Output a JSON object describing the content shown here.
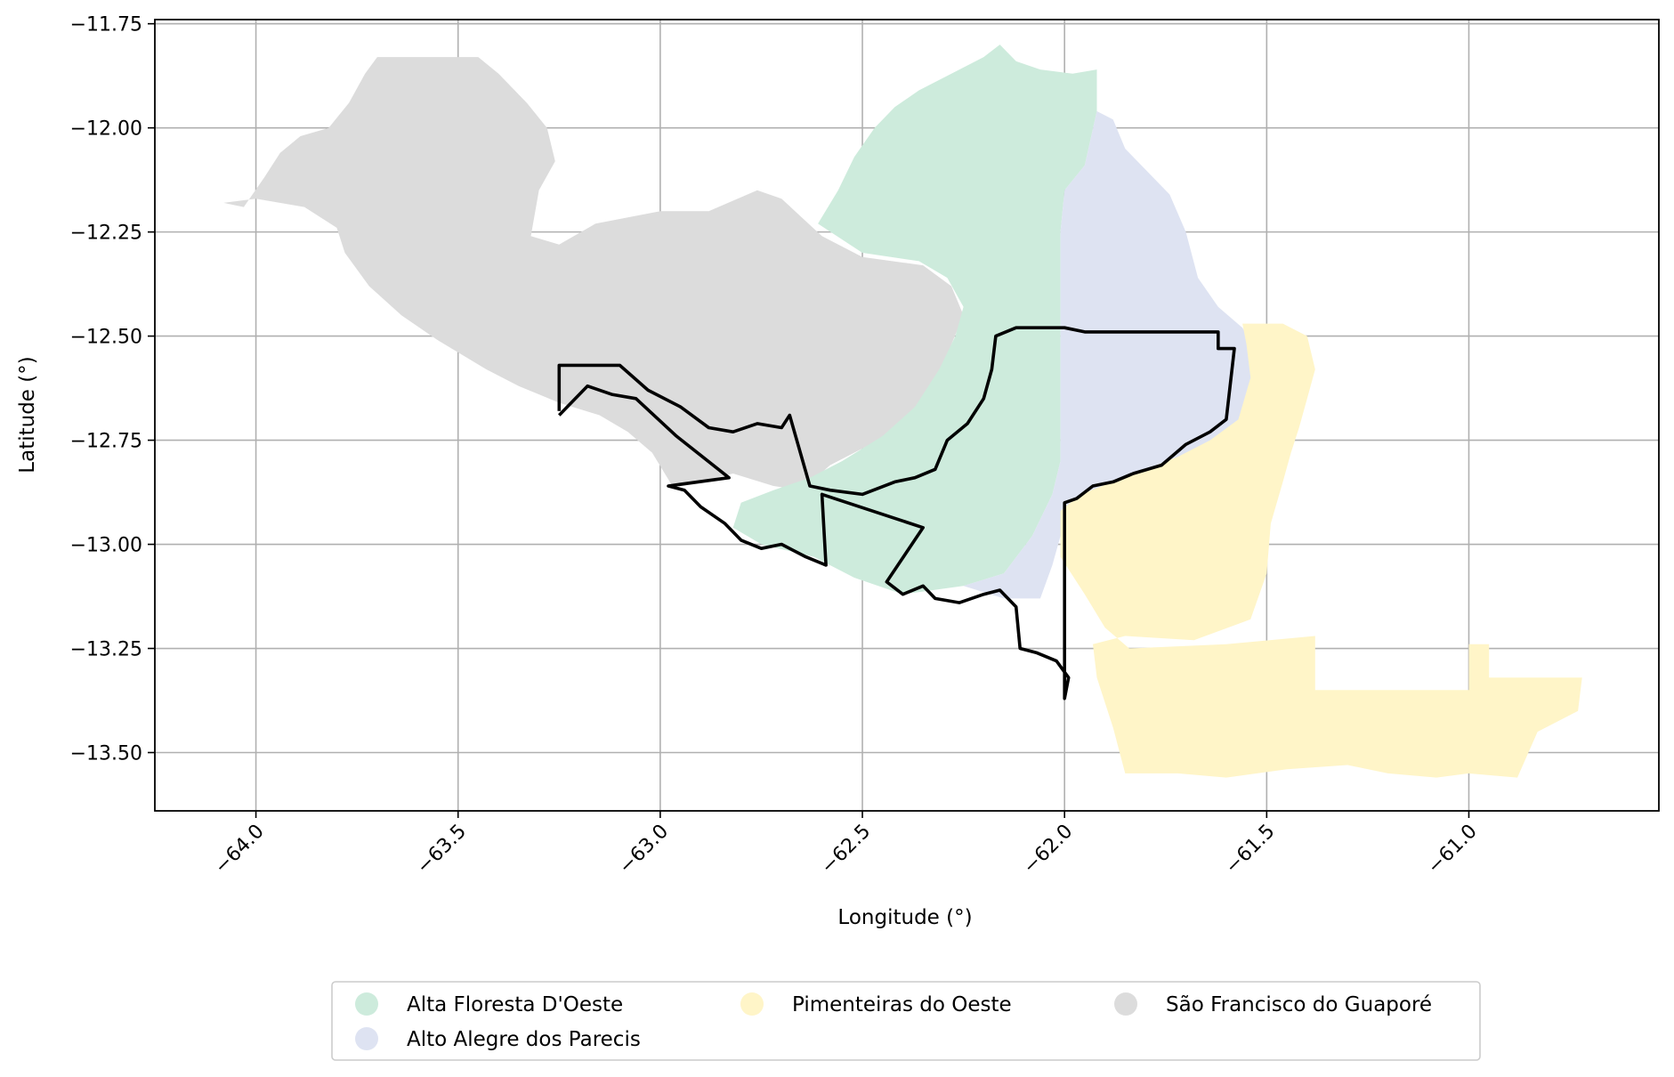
{
  "chart_data": {
    "type": "map",
    "xlabel": "Longitude (°)",
    "ylabel": "Latitude (°)",
    "xlim": [
      -64.25,
      -60.53
    ],
    "ylim": [
      -13.64,
      -11.74
    ],
    "grid": true,
    "x_ticks": [
      -64.0,
      -63.5,
      -63.0,
      -62.5,
      -62.0,
      -61.5,
      -61.0
    ],
    "y_ticks": [
      -11.75,
      -12.0,
      -12.25,
      -12.5,
      -12.75,
      -13.0,
      -13.25,
      -13.5
    ],
    "x_tick_labels": [
      "−64.0",
      "−63.5",
      "−63.0",
      "−62.5",
      "−62.0",
      "−61.5",
      "−61.0"
    ],
    "y_tick_labels": [
      "−11.75",
      "−12.00",
      "−12.25",
      "−12.50",
      "−12.75",
      "−13.00",
      "−13.25",
      "−13.50"
    ],
    "legend_position": "bottom-center",
    "regions": [
      {
        "name": "São Francisco do Guaporé",
        "color": "#dcdcdc",
        "polygon": [
          [
            -64.08,
            -12.18
          ],
          [
            -64.03,
            -12.19
          ],
          [
            -63.98,
            -12.12
          ],
          [
            -63.94,
            -12.06
          ],
          [
            -63.89,
            -12.02
          ],
          [
            -63.82,
            -12.0
          ],
          [
            -63.77,
            -11.94
          ],
          [
            -63.73,
            -11.87
          ],
          [
            -63.7,
            -11.83
          ],
          [
            -63.45,
            -11.83
          ],
          [
            -63.4,
            -11.87
          ],
          [
            -63.33,
            -11.94
          ],
          [
            -63.28,
            -12.0
          ],
          [
            -63.26,
            -12.08
          ],
          [
            -63.3,
            -12.15
          ],
          [
            -63.32,
            -12.26
          ],
          [
            -63.25,
            -12.28
          ],
          [
            -63.16,
            -12.23
          ],
          [
            -63.0,
            -12.2
          ],
          [
            -62.88,
            -12.2
          ],
          [
            -62.76,
            -12.15
          ],
          [
            -62.7,
            -12.17
          ],
          [
            -62.6,
            -12.26
          ],
          [
            -62.5,
            -12.31
          ],
          [
            -62.35,
            -12.33
          ],
          [
            -62.28,
            -12.38
          ],
          [
            -62.25,
            -12.45
          ],
          [
            -62.28,
            -12.52
          ],
          [
            -62.3,
            -12.6
          ],
          [
            -62.35,
            -12.68
          ],
          [
            -62.42,
            -12.73
          ],
          [
            -62.5,
            -12.77
          ],
          [
            -62.58,
            -12.81
          ],
          [
            -62.65,
            -12.87
          ],
          [
            -62.72,
            -12.86
          ],
          [
            -62.82,
            -12.83
          ],
          [
            -62.9,
            -12.85
          ],
          [
            -62.97,
            -12.86
          ],
          [
            -63.02,
            -12.78
          ],
          [
            -63.08,
            -12.73
          ],
          [
            -63.15,
            -12.69
          ],
          [
            -63.25,
            -12.66
          ],
          [
            -63.35,
            -12.62
          ],
          [
            -63.43,
            -12.58
          ],
          [
            -63.55,
            -12.51
          ],
          [
            -63.64,
            -12.45
          ],
          [
            -63.72,
            -12.38
          ],
          [
            -63.78,
            -12.3
          ],
          [
            -63.8,
            -12.24
          ],
          [
            -63.88,
            -12.19
          ],
          [
            -64.0,
            -12.17
          ]
        ]
      },
      {
        "name": "Alta Floresta D'Oeste",
        "color": "#cdebdc",
        "polygon": [
          [
            -62.61,
            -12.23
          ],
          [
            -62.56,
            -12.15
          ],
          [
            -62.52,
            -12.07
          ],
          [
            -62.47,
            -12.0
          ],
          [
            -62.42,
            -11.95
          ],
          [
            -62.36,
            -11.91
          ],
          [
            -62.26,
            -11.86
          ],
          [
            -62.2,
            -11.83
          ],
          [
            -62.16,
            -11.8
          ],
          [
            -62.12,
            -11.84
          ],
          [
            -62.06,
            -11.86
          ],
          [
            -61.98,
            -11.87
          ],
          [
            -61.92,
            -11.86
          ],
          [
            -61.92,
            -11.96
          ],
          [
            -61.95,
            -12.09
          ],
          [
            -62.0,
            -12.15
          ],
          [
            -62.01,
            -12.25
          ],
          [
            -62.01,
            -12.8
          ],
          [
            -62.03,
            -12.88
          ],
          [
            -62.08,
            -12.98
          ],
          [
            -62.15,
            -13.07
          ],
          [
            -62.25,
            -13.1
          ],
          [
            -62.4,
            -13.12
          ],
          [
            -62.52,
            -13.08
          ],
          [
            -62.62,
            -13.03
          ],
          [
            -62.75,
            -13.0
          ],
          [
            -62.82,
            -12.96
          ],
          [
            -62.8,
            -12.9
          ],
          [
            -62.72,
            -12.87
          ],
          [
            -62.63,
            -12.84
          ],
          [
            -62.55,
            -12.8
          ],
          [
            -62.45,
            -12.74
          ],
          [
            -62.37,
            -12.67
          ],
          [
            -62.31,
            -12.58
          ],
          [
            -62.27,
            -12.5
          ],
          [
            -62.25,
            -12.43
          ],
          [
            -62.29,
            -12.36
          ],
          [
            -62.36,
            -12.32
          ],
          [
            -62.5,
            -12.3
          ]
        ]
      },
      {
        "name": "Alto Alegre dos Parecis",
        "color": "#dee3f2",
        "polygon": [
          [
            -61.92,
            -11.96
          ],
          [
            -61.88,
            -11.98
          ],
          [
            -61.85,
            -12.05
          ],
          [
            -61.8,
            -12.1
          ],
          [
            -61.74,
            -12.16
          ],
          [
            -61.7,
            -12.25
          ],
          [
            -61.67,
            -12.36
          ],
          [
            -61.62,
            -12.43
          ],
          [
            -61.56,
            -12.48
          ],
          [
            -61.52,
            -12.55
          ],
          [
            -61.53,
            -12.64
          ],
          [
            -61.58,
            -12.73
          ],
          [
            -61.66,
            -12.78
          ],
          [
            -61.73,
            -12.8
          ],
          [
            -61.82,
            -12.84
          ],
          [
            -61.9,
            -12.86
          ],
          [
            -61.96,
            -12.9
          ],
          [
            -62.01,
            -12.98
          ],
          [
            -62.03,
            -13.05
          ],
          [
            -62.06,
            -13.13
          ],
          [
            -62.15,
            -13.13
          ],
          [
            -62.25,
            -13.1
          ],
          [
            -62.15,
            -13.07
          ],
          [
            -62.08,
            -12.98
          ],
          [
            -62.03,
            -12.88
          ],
          [
            -62.01,
            -12.8
          ],
          [
            -62.01,
            -12.25
          ],
          [
            -62.0,
            -12.15
          ],
          [
            -61.95,
            -12.09
          ]
        ]
      },
      {
        "name": "Pimenteiras do Oeste",
        "color": "#fff5c8",
        "polygon": [
          [
            -61.56,
            -12.47
          ],
          [
            -61.46,
            -12.47
          ],
          [
            -61.4,
            -12.5
          ],
          [
            -61.38,
            -12.58
          ],
          [
            -61.4,
            -12.65
          ],
          [
            -61.42,
            -12.72
          ],
          [
            -61.44,
            -12.78
          ],
          [
            -61.46,
            -12.85
          ],
          [
            -61.49,
            -12.95
          ],
          [
            -61.5,
            -13.07
          ],
          [
            -61.54,
            -13.18
          ],
          [
            -61.68,
            -13.23
          ],
          [
            -61.85,
            -13.22
          ],
          [
            -61.93,
            -13.24
          ],
          [
            -61.92,
            -13.32
          ],
          [
            -61.88,
            -13.44
          ],
          [
            -61.85,
            -13.55
          ],
          [
            -61.72,
            -13.55
          ],
          [
            -61.6,
            -13.56
          ],
          [
            -61.45,
            -13.54
          ],
          [
            -61.3,
            -13.53
          ],
          [
            -61.2,
            -13.55
          ],
          [
            -61.08,
            -13.56
          ],
          [
            -61.0,
            -13.55
          ],
          [
            -60.88,
            -13.56
          ],
          [
            -60.83,
            -13.45
          ],
          [
            -60.73,
            -13.4
          ],
          [
            -60.72,
            -13.32
          ],
          [
            -60.95,
            -13.32
          ],
          [
            -60.95,
            -13.24
          ],
          [
            -61.0,
            -13.24
          ],
          [
            -61.0,
            -13.35
          ],
          [
            -61.38,
            -13.35
          ],
          [
            -61.38,
            -13.22
          ],
          [
            -61.6,
            -13.24
          ],
          [
            -61.84,
            -13.25
          ],
          [
            -61.9,
            -13.2
          ],
          [
            -61.95,
            -13.12
          ],
          [
            -62.01,
            -13.03
          ],
          [
            -62.01,
            -12.92
          ],
          [
            -61.96,
            -12.88
          ],
          [
            -61.88,
            -12.85
          ],
          [
            -61.8,
            -12.82
          ],
          [
            -61.72,
            -12.79
          ],
          [
            -61.64,
            -12.75
          ],
          [
            -61.57,
            -12.7
          ],
          [
            -61.54,
            -12.6
          ],
          [
            -61.55,
            -12.52
          ]
        ]
      }
    ],
    "outline": [
      [
        -63.25,
        -12.68
      ],
      [
        -63.25,
        -12.57
      ],
      [
        -63.1,
        -12.57
      ],
      [
        -63.03,
        -12.63
      ],
      [
        -62.95,
        -12.67
      ],
      [
        -62.88,
        -12.72
      ],
      [
        -62.82,
        -12.73
      ],
      [
        -62.76,
        -12.71
      ],
      [
        -62.7,
        -12.72
      ],
      [
        -62.68,
        -12.69
      ],
      [
        -62.63,
        -12.86
      ],
      [
        -62.58,
        -12.87
      ],
      [
        -62.5,
        -12.88
      ],
      [
        -62.42,
        -12.85
      ],
      [
        -62.37,
        -12.84
      ],
      [
        -62.32,
        -12.82
      ],
      [
        -62.29,
        -12.75
      ],
      [
        -62.24,
        -12.71
      ],
      [
        -62.2,
        -12.65
      ],
      [
        -62.18,
        -12.58
      ],
      [
        -62.17,
        -12.5
      ],
      [
        -62.12,
        -12.48
      ],
      [
        -62.0,
        -12.48
      ],
      [
        -61.95,
        -12.49
      ],
      [
        -61.62,
        -12.49
      ],
      [
        -61.62,
        -12.53
      ],
      [
        -61.58,
        -12.53
      ],
      [
        -61.6,
        -12.7
      ],
      [
        -61.64,
        -12.73
      ],
      [
        -61.7,
        -12.76
      ],
      [
        -61.76,
        -12.81
      ],
      [
        -61.83,
        -12.83
      ],
      [
        -61.88,
        -12.85
      ],
      [
        -61.93,
        -12.86
      ],
      [
        -61.97,
        -12.89
      ],
      [
        -62.0,
        -12.9
      ],
      [
        -62.0,
        -13.37
      ],
      [
        -61.99,
        -13.32
      ],
      [
        -62.02,
        -13.28
      ],
      [
        -62.07,
        -13.26
      ],
      [
        -62.11,
        -13.25
      ],
      [
        -62.12,
        -13.15
      ],
      [
        -62.16,
        -13.11
      ],
      [
        -62.2,
        -13.12
      ],
      [
        -62.26,
        -13.14
      ],
      [
        -62.32,
        -13.13
      ],
      [
        -62.35,
        -13.1
      ],
      [
        -62.4,
        -13.12
      ],
      [
        -62.44,
        -13.09
      ],
      [
        -62.35,
        -12.96
      ],
      [
        -62.6,
        -12.88
      ],
      [
        -62.59,
        -13.05
      ],
      [
        -62.64,
        -13.03
      ],
      [
        -62.7,
        -13.0
      ],
      [
        -62.75,
        -13.01
      ],
      [
        -62.8,
        -12.99
      ],
      [
        -62.84,
        -12.95
      ],
      [
        -62.9,
        -12.91
      ],
      [
        -62.94,
        -12.87
      ],
      [
        -62.98,
        -12.86
      ],
      [
        -62.83,
        -12.84
      ],
      [
        -62.96,
        -12.74
      ],
      [
        -63.06,
        -12.65
      ],
      [
        -63.12,
        -12.64
      ],
      [
        -63.18,
        -12.62
      ],
      [
        -63.22,
        -12.66
      ],
      [
        -63.25,
        -12.69
      ]
    ]
  }
}
